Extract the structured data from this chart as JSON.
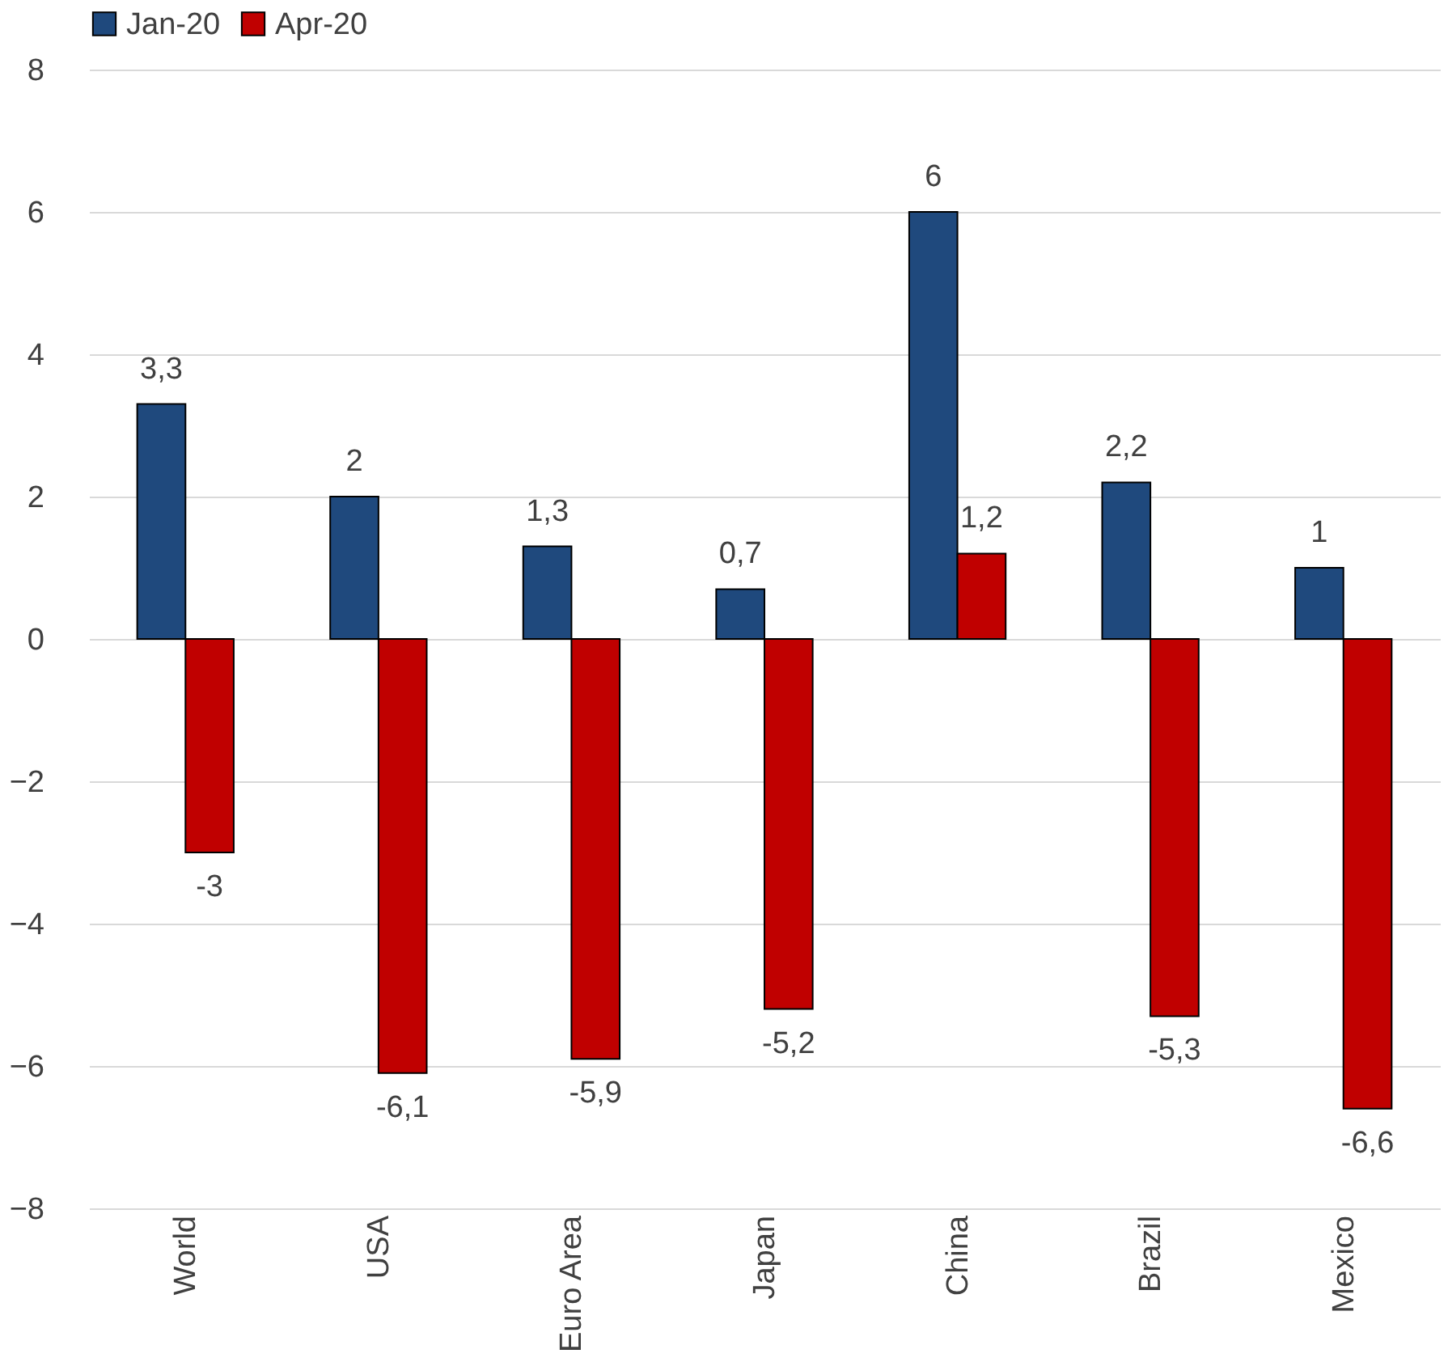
{
  "chart_data": {
    "type": "bar",
    "categories": [
      "World",
      "USA",
      "Euro Area",
      "Japan",
      "China",
      "Brazil",
      "Mexico"
    ],
    "series": [
      {
        "name": "Jan-20",
        "color": "#1f497d",
        "values": [
          3.3,
          2,
          1.3,
          0.7,
          6,
          2.2,
          1
        ],
        "value_labels": [
          "3,3",
          "2",
          "1,3",
          "0,7",
          "6",
          "2,2",
          "1"
        ]
      },
      {
        "name": "Apr-20",
        "color": "#c00000",
        "values": [
          -3,
          -6.1,
          -5.9,
          -5.2,
          1.2,
          -5.3,
          -6.6
        ],
        "value_labels": [
          "-3",
          "-6,1",
          "-5,9",
          "-5,2",
          "1,2",
          "-5,3",
          "-6,6"
        ]
      }
    ],
    "ylim": [
      -8,
      8
    ],
    "yticks": [
      -8,
      -6,
      -4,
      -2,
      0,
      2,
      4,
      6,
      8
    ],
    "grid": "y",
    "legend": "top"
  }
}
